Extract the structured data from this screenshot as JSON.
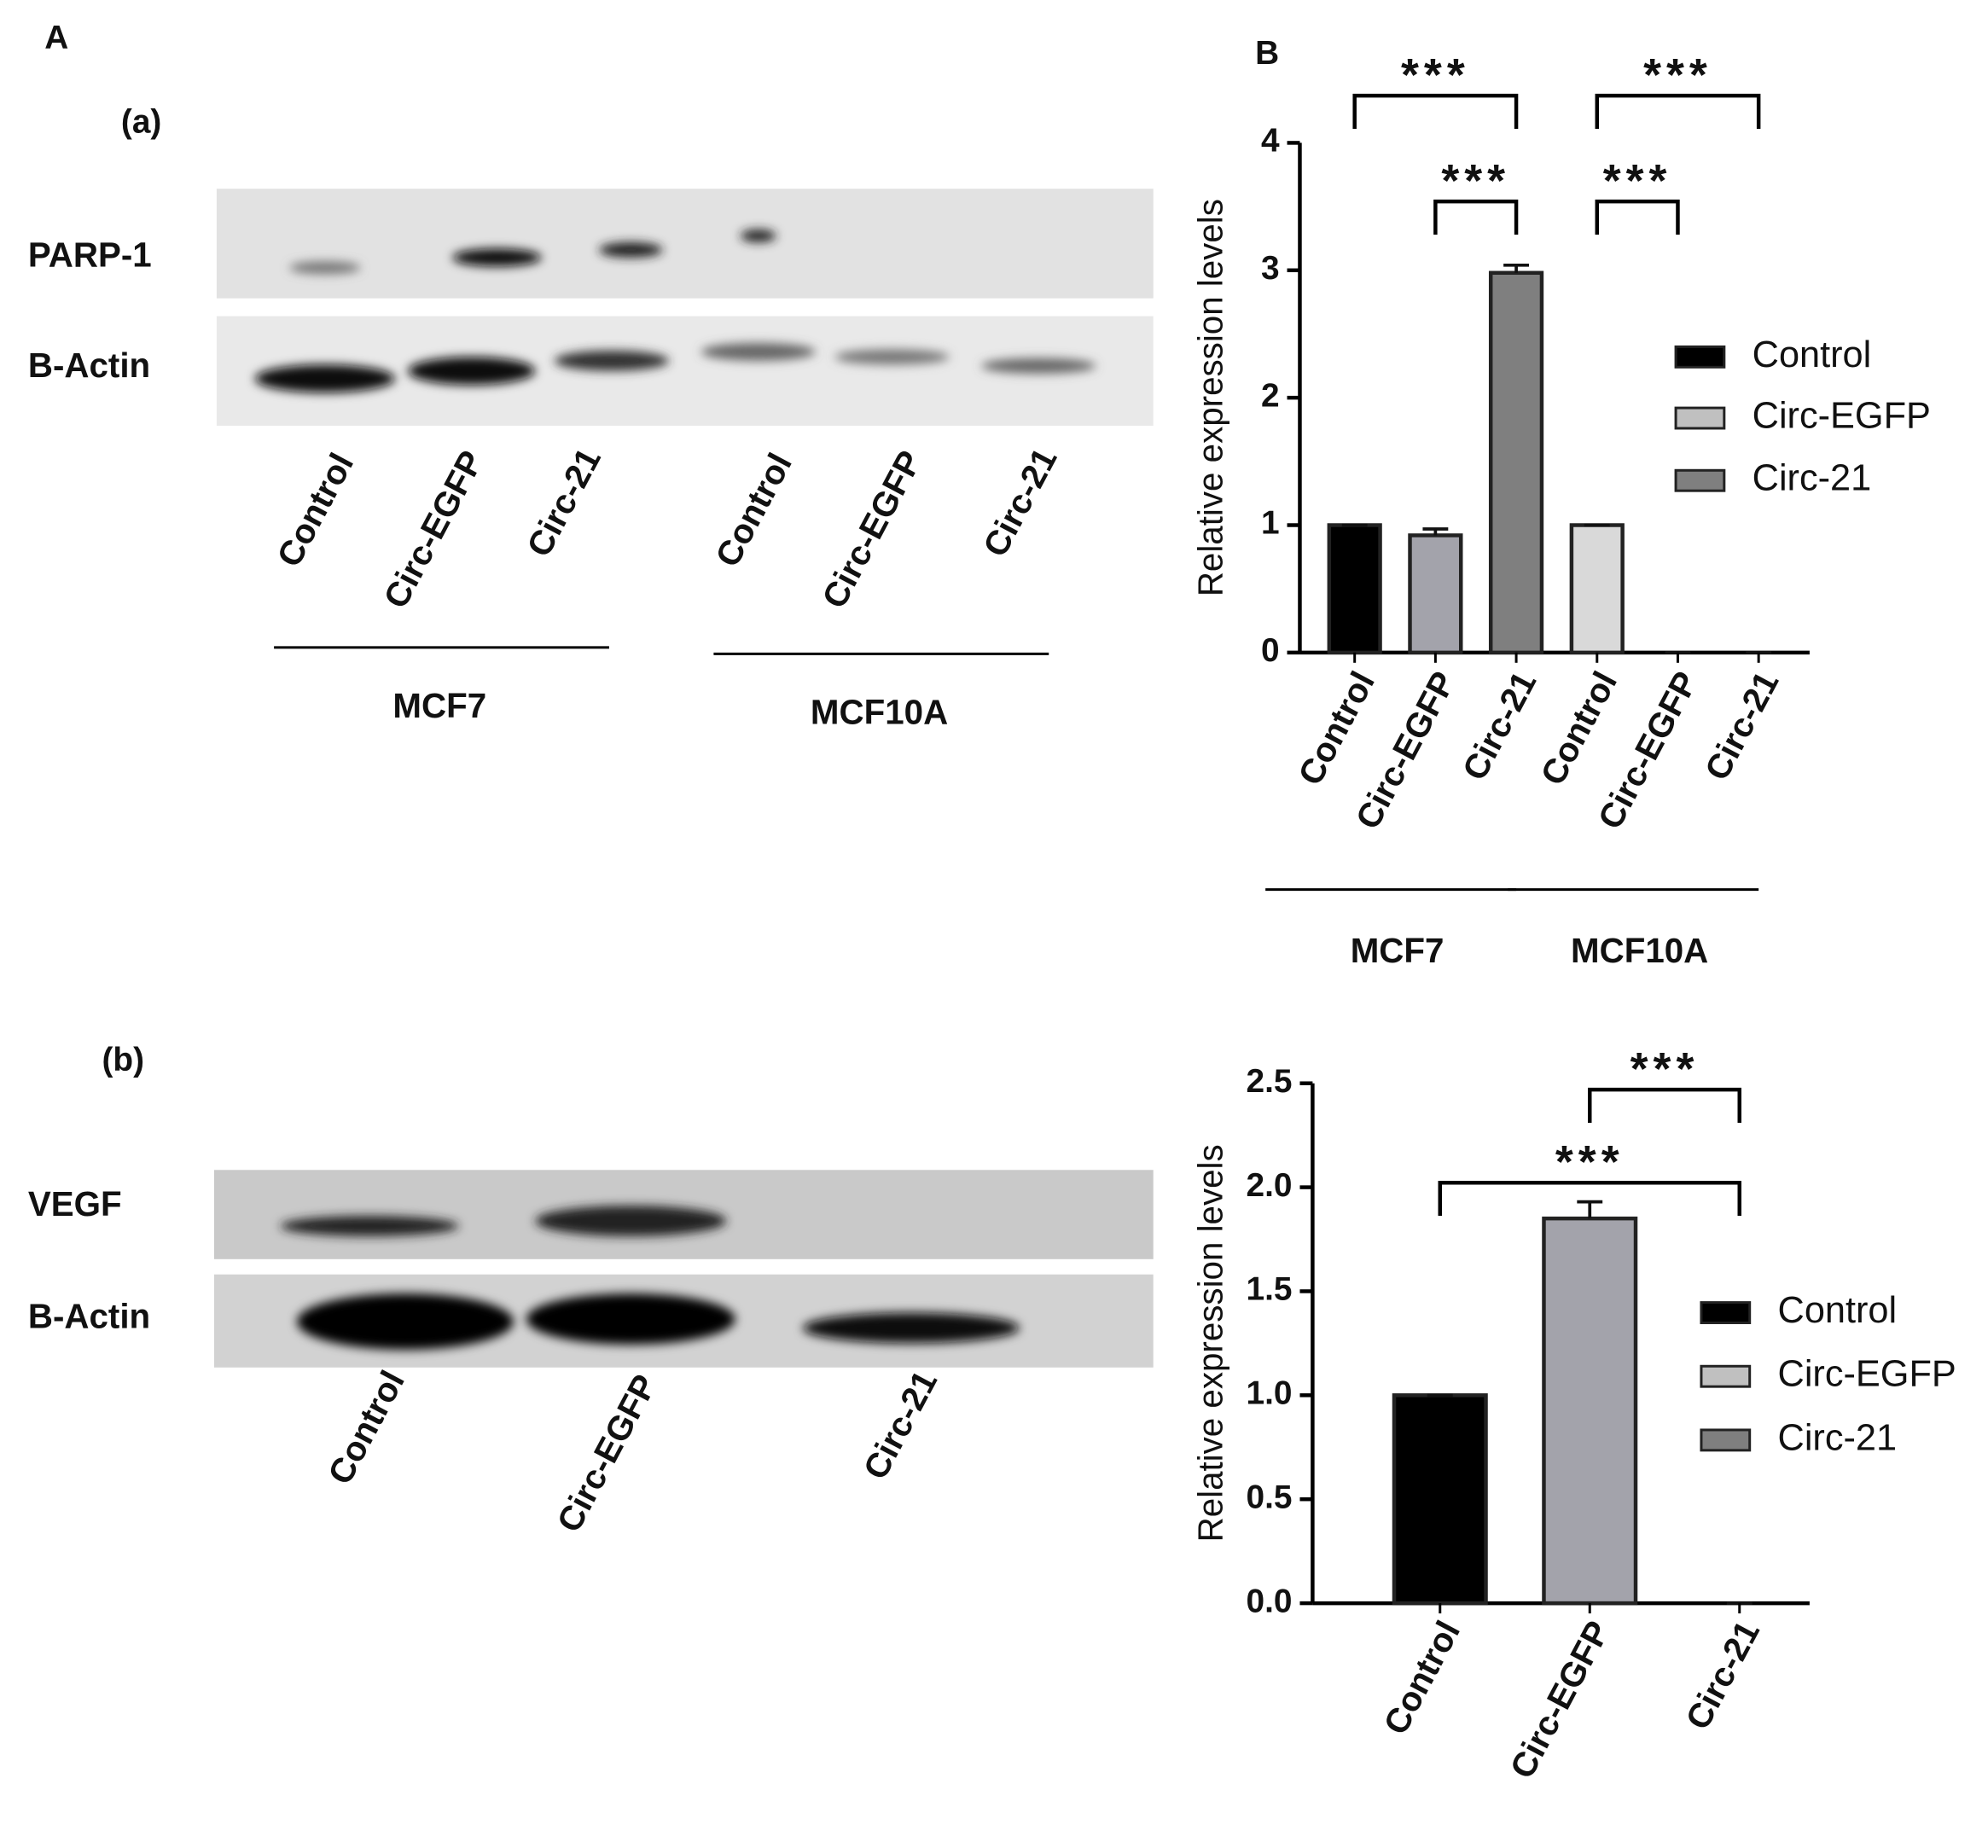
{
  "panel_labels": [
    "A",
    "B"
  ],
  "blots": [
    {
      "label": "(a)",
      "rows": [
        "PARP-1",
        "B-Actin"
      ],
      "lanes": [
        "Control",
        "Circ-EGFP",
        "Circ-21",
        "Control",
        "Circ-EGFP",
        "Circ-21"
      ],
      "groups": [
        "MCF7",
        "MCF10A"
      ]
    },
    {
      "label": "(b)",
      "rows": [
        "VEGF",
        "B-Actin"
      ],
      "lanes": [
        "Control",
        "Circ-EGFP",
        "Circ-21"
      ]
    }
  ],
  "chart_data": [
    {
      "type": "bar",
      "y_label": "Relative expression levels",
      "categories": [
        "Control",
        "Circ-EGFP",
        "Circ-21",
        "Control",
        "Circ-EGFP",
        "Circ-21"
      ],
      "groups": [
        "MCF7",
        "MCF10A"
      ],
      "values": [
        1,
        0.92,
        2.98,
        1,
        0,
        0
      ],
      "errors": [
        0,
        0.05,
        0.06,
        0,
        0,
        0
      ],
      "colors": [
        "#000000",
        "#a3a3ab",
        "#7f7f7f",
        "#d9d9d9",
        "#d9d9d9",
        "#d9d9d9"
      ],
      "ylim": [
        0,
        4
      ],
      "yticks": [
        0,
        1,
        2,
        3,
        4
      ],
      "legend": [
        {
          "name": "Control",
          "color": "#000000"
        },
        {
          "name": "Circ-EGFP",
          "color": "#c0c0c0"
        },
        {
          "name": "Circ-21",
          "color": "#7f7f7f"
        }
      ],
      "annotations": [
        {
          "text": "***",
          "from": 0,
          "to": 2
        },
        {
          "text": "***",
          "from": 3,
          "to": 5
        },
        {
          "text": "***",
          "from": 1,
          "to": 2
        },
        {
          "text": "***",
          "from": 3,
          "to": 4
        }
      ]
    },
    {
      "type": "bar",
      "y_label": "Relative expression levels",
      "categories": [
        "Control",
        "Circ-EGFP",
        "Circ-21"
      ],
      "values": [
        1,
        1.85,
        0
      ],
      "errors": [
        0,
        0.08,
        0
      ],
      "colors": [
        "#000000",
        "#a3a3ab",
        "#7f7f7f"
      ],
      "ylim": [
        0,
        2.5
      ],
      "yticks": [
        {
          "value": 0,
          "label": "0.0"
        },
        0.5,
        {
          "value": 1,
          "label": "1.0"
        },
        1.5,
        {
          "value": 2,
          "label": "2.0"
        },
        2.5
      ],
      "legend": [
        {
          "name": "Control",
          "color": "#000000"
        },
        {
          "name": "Circ-EGFP",
          "color": "#c0c0c0"
        },
        {
          "name": "Circ-21",
          "color": "#7f7f7f"
        }
      ],
      "annotations": [
        {
          "text": "***",
          "from": 1,
          "to": 2
        },
        {
          "text": "***",
          "from": 0,
          "to": 2
        }
      ]
    }
  ]
}
